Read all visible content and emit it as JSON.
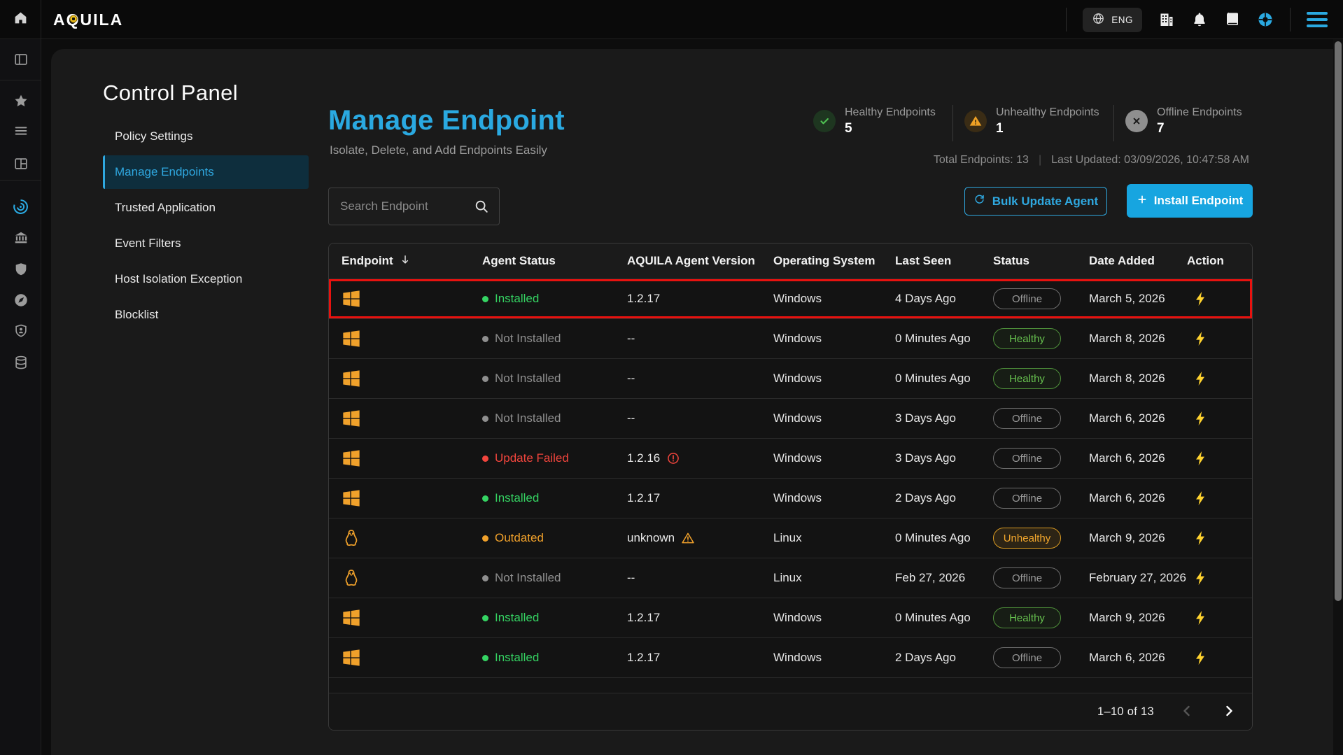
{
  "colors": {
    "accent": "#2aa9e1",
    "healthy_green": "#4fc353",
    "warning_orange": "#f0a12b",
    "error_red": "#f2453d",
    "highlight_red": "#e8120f",
    "action_yellow": "#ffd22e"
  },
  "topbar": {
    "brand": "AQUILA",
    "language": "ENG",
    "icons": [
      {
        "name": "organization-icon",
        "icon": "building"
      },
      {
        "name": "notifications-icon",
        "icon": "bell"
      },
      {
        "name": "docs-icon",
        "icon": "book"
      },
      {
        "name": "support-icon",
        "icon": "lifebuoy"
      }
    ]
  },
  "sidebar": {
    "rail": [
      {
        "name": "panel-toggle-icon",
        "icon": "panel",
        "active": false
      },
      {
        "name": "favorites-icon",
        "icon": "star",
        "active": false
      },
      {
        "name": "menu-list-icon",
        "icon": "hamburger",
        "active": false
      },
      {
        "name": "layout-icon",
        "icon": "grid",
        "active": false
      },
      {
        "name": "endpoint-scan-icon",
        "icon": "radar",
        "active": true
      },
      {
        "name": "institution-icon",
        "icon": "bank",
        "active": false
      },
      {
        "name": "shield-icon",
        "icon": "shield",
        "active": false
      },
      {
        "name": "compass-icon",
        "icon": "compass",
        "active": false
      },
      {
        "name": "shield-user-icon",
        "icon": "shieldUser",
        "active": false
      },
      {
        "name": "database-icon",
        "icon": "database",
        "active": false
      }
    ]
  },
  "page": {
    "title": "Control Panel"
  },
  "nav": {
    "items": [
      {
        "label": "Policy Settings",
        "active": false
      },
      {
        "label": "Manage Endpoints",
        "active": true
      },
      {
        "label": "Trusted Application",
        "active": false
      },
      {
        "label": "Event Filters",
        "active": false
      },
      {
        "label": "Host Isolation Exception",
        "active": false
      },
      {
        "label": "Blocklist",
        "active": false
      }
    ]
  },
  "header": {
    "title": "Manage Endpoint",
    "subtitle": "Isolate, Delete, and Add Endpoints Easily"
  },
  "stats": [
    {
      "label": "Healthy Endpoints",
      "value": "5",
      "icon": "check"
    },
    {
      "label": "Unhealthy Endpoints",
      "value": "1",
      "icon": "warning"
    },
    {
      "label": "Offline Endpoints",
      "value": "7",
      "icon": "cross"
    }
  ],
  "summary": {
    "total": "Total Endpoints: 13",
    "separator": "|",
    "last_updated": "Last Updated: 03/09/2026, 10:47:58 AM"
  },
  "search": {
    "placeholder": "Search Endpoint"
  },
  "buttons": {
    "bulk": "Bulk Update Agent",
    "install": "Install Endpoint"
  },
  "table": {
    "columns": [
      "Endpoint",
      "Agent Status",
      "AQUILA Agent Version",
      "Operating System",
      "Last Seen",
      "Status",
      "Date Added",
      "Action"
    ],
    "rows": [
      {
        "os_icon": "windows",
        "agent_status": "Installed",
        "agent_state": "installed",
        "version": "1.2.17",
        "version_alert": "",
        "os": "Windows",
        "last_seen": "4 Days Ago",
        "status": "Offline",
        "date_added": "March 5, 2026",
        "highlighted": true
      },
      {
        "os_icon": "windows",
        "agent_status": "Not Installed",
        "agent_state": "none",
        "version": "--",
        "version_alert": "",
        "os": "Windows",
        "last_seen": "0 Minutes Ago",
        "status": "Healthy",
        "date_added": "March 8, 2026",
        "highlighted": false
      },
      {
        "os_icon": "windows",
        "agent_status": "Not Installed",
        "agent_state": "none",
        "version": "--",
        "version_alert": "",
        "os": "Windows",
        "last_seen": "0 Minutes Ago",
        "status": "Healthy",
        "date_added": "March 8, 2026",
        "highlighted": false
      },
      {
        "os_icon": "windows",
        "agent_status": "Not Installed",
        "agent_state": "none",
        "version": "--",
        "version_alert": "",
        "os": "Windows",
        "last_seen": "3 Days Ago",
        "status": "Offline",
        "date_added": "March 6, 2026",
        "highlighted": false
      },
      {
        "os_icon": "windows",
        "agent_status": "Update Failed",
        "agent_state": "failed",
        "version": "1.2.16",
        "version_alert": "error",
        "os": "Windows",
        "last_seen": "3 Days Ago",
        "status": "Offline",
        "date_added": "March 6, 2026",
        "highlighted": false
      },
      {
        "os_icon": "windows",
        "agent_status": "Installed",
        "agent_state": "installed",
        "version": "1.2.17",
        "version_alert": "",
        "os": "Windows",
        "last_seen": "2 Days Ago",
        "status": "Offline",
        "date_added": "March 6, 2026",
        "highlighted": false
      },
      {
        "os_icon": "linux",
        "agent_status": "Outdated",
        "agent_state": "outdated",
        "version": "unknown",
        "version_alert": "warning",
        "os": "Linux",
        "last_seen": "0 Minutes Ago",
        "status": "Unhealthy",
        "date_added": "March 9, 2026",
        "highlighted": false
      },
      {
        "os_icon": "linux",
        "agent_status": "Not Installed",
        "agent_state": "none",
        "version": "--",
        "version_alert": "",
        "os": "Linux",
        "last_seen": "Feb 27, 2026",
        "status": "Offline",
        "date_added": "February 27, 2026",
        "highlighted": false
      },
      {
        "os_icon": "windows",
        "agent_status": "Installed",
        "agent_state": "installed",
        "version": "1.2.17",
        "version_alert": "",
        "os": "Windows",
        "last_seen": "0 Minutes Ago",
        "status": "Healthy",
        "date_added": "March 9, 2026",
        "highlighted": false
      },
      {
        "os_icon": "windows",
        "agent_status": "Installed",
        "agent_state": "installed",
        "version": "1.2.17",
        "version_alert": "",
        "os": "Windows",
        "last_seen": "2 Days Ago",
        "status": "Offline",
        "date_added": "March 6, 2026",
        "highlighted": false
      }
    ]
  },
  "pagination": {
    "range": "1–10 of 13"
  }
}
